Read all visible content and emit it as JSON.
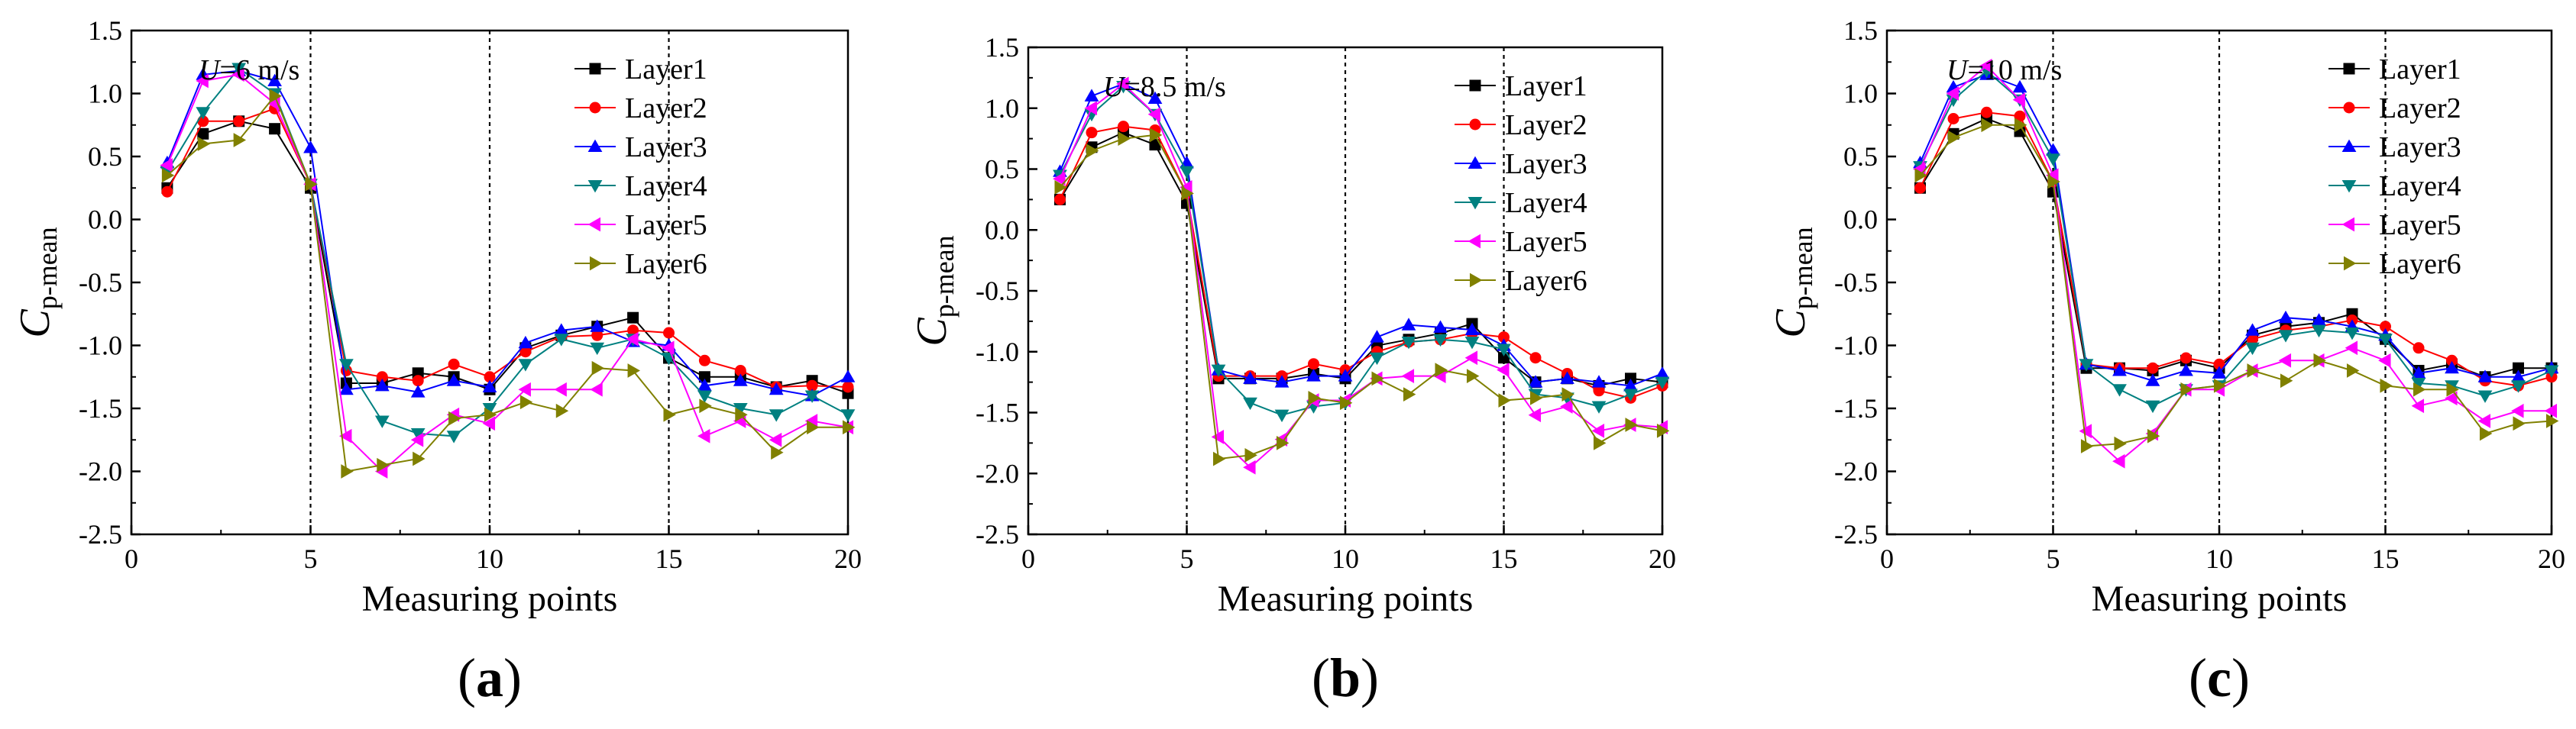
{
  "chart_data": [
    {
      "type": "line",
      "panel_label": "(a)",
      "panel_letter": "a",
      "annotation": {
        "var": "U",
        "rest": "=6 m/s"
      },
      "xlabel": "Measuring points",
      "ylabel": {
        "main": "C",
        "sub": "p-mean"
      },
      "xlim": [
        0,
        20
      ],
      "ylim": [
        -2.5,
        1.5
      ],
      "xticks": [
        "0",
        "5",
        "10",
        "15",
        "20"
      ],
      "yticks": [
        "-2.5",
        "-2.0",
        "-1.5",
        "-1.0",
        "-0.5",
        "0.0",
        "0.5",
        "1.0",
        "1.5"
      ],
      "vlines": [
        5,
        10,
        15
      ],
      "x": [
        1,
        2,
        3,
        4,
        5,
        6,
        7,
        8,
        9,
        10,
        11,
        12,
        13,
        14,
        15,
        16,
        17,
        18,
        19,
        20
      ],
      "series": [
        {
          "name": "Layer1",
          "color": "#000000",
          "marker": "square",
          "values": [
            0.25,
            0.68,
            0.78,
            0.72,
            0.25,
            -1.3,
            -1.3,
            -1.22,
            -1.25,
            -1.35,
            -1.02,
            -0.92,
            -0.85,
            -0.78,
            -1.1,
            -1.25,
            -1.25,
            -1.33,
            -1.28,
            -1.38
          ]
        },
        {
          "name": "Layer2",
          "color": "#ff0000",
          "marker": "circle",
          "values": [
            0.22,
            0.78,
            0.78,
            0.88,
            0.28,
            -1.2,
            -1.25,
            -1.28,
            -1.15,
            -1.25,
            -1.05,
            -0.93,
            -0.92,
            -0.88,
            -0.9,
            -1.12,
            -1.2,
            -1.33,
            -1.32,
            -1.33
          ]
        },
        {
          "name": "Layer3",
          "color": "#0000ff",
          "marker": "triangle-up",
          "values": [
            0.45,
            1.15,
            1.18,
            1.1,
            0.57,
            -1.35,
            -1.32,
            -1.37,
            -1.28,
            -1.33,
            -0.98,
            -0.88,
            -0.85,
            -0.97,
            -1.0,
            -1.32,
            -1.28,
            -1.35,
            -1.4,
            -1.25
          ]
        },
        {
          "name": "Layer4",
          "color": "#008080",
          "marker": "triangle-down",
          "values": [
            0.38,
            0.85,
            1.2,
            1.0,
            0.28,
            -1.15,
            -1.6,
            -1.7,
            -1.72,
            -1.5,
            -1.15,
            -0.95,
            -1.02,
            -0.95,
            -1.1,
            -1.4,
            -1.5,
            -1.55,
            -1.4,
            -1.55
          ]
        },
        {
          "name": "Layer5",
          "color": "#ff00ff",
          "marker": "triangle-left",
          "values": [
            0.43,
            1.1,
            1.15,
            0.92,
            0.28,
            -1.72,
            -2.0,
            -1.75,
            -1.55,
            -1.62,
            -1.35,
            -1.35,
            -1.35,
            -0.95,
            -1.02,
            -1.72,
            -1.6,
            -1.75,
            -1.6,
            -1.65
          ]
        },
        {
          "name": "Layer6",
          "color": "#808000",
          "marker": "triangle-right",
          "values": [
            0.35,
            0.6,
            0.63,
            0.98,
            0.28,
            -2.0,
            -1.95,
            -1.9,
            -1.58,
            -1.55,
            -1.45,
            -1.52,
            -1.18,
            -1.2,
            -1.55,
            -1.48,
            -1.55,
            -1.85,
            -1.65,
            -1.65
          ]
        }
      ]
    },
    {
      "type": "line",
      "panel_label": "(b)",
      "panel_letter": "b",
      "annotation": {
        "var": "U",
        "rest": "=8.5 m/s"
      },
      "xlabel": "Measuring points",
      "ylabel": {
        "main": "C",
        "sub": "p-mean"
      },
      "xlim": [
        0,
        20
      ],
      "ylim": [
        -2.5,
        1.5
      ],
      "xticks": [
        "0",
        "5",
        "10",
        "15",
        "20"
      ],
      "yticks": [
        "-2.5",
        "-2.0",
        "-1.5",
        "-1.0",
        "-0.5",
        "0.0",
        "0.5",
        "1.0",
        "1.5"
      ],
      "vlines": [
        5,
        10,
        15
      ],
      "x": [
        1,
        2,
        3,
        4,
        5,
        6,
        7,
        8,
        9,
        10,
        11,
        12,
        13,
        14,
        15,
        16,
        17,
        18,
        19,
        20
      ],
      "series": [
        {
          "name": "Layer1",
          "color": "#000000",
          "marker": "square",
          "values": [
            0.25,
            0.68,
            0.8,
            0.7,
            0.22,
            -1.22,
            -1.22,
            -1.22,
            -1.18,
            -1.22,
            -0.95,
            -0.9,
            -0.85,
            -0.77,
            -1.05,
            -1.25,
            -1.22,
            -1.28,
            -1.22,
            -1.25
          ]
        },
        {
          "name": "Layer2",
          "color": "#ff0000",
          "marker": "circle",
          "values": [
            0.25,
            0.8,
            0.85,
            0.82,
            0.3,
            -1.2,
            -1.2,
            -1.2,
            -1.1,
            -1.15,
            -1.0,
            -0.92,
            -0.9,
            -0.85,
            -0.88,
            -1.05,
            -1.18,
            -1.32,
            -1.38,
            -1.28
          ]
        },
        {
          "name": "Layer3",
          "color": "#0000ff",
          "marker": "triangle-up",
          "values": [
            0.48,
            1.1,
            1.2,
            1.08,
            0.55,
            -1.15,
            -1.22,
            -1.25,
            -1.2,
            -1.2,
            -0.88,
            -0.78,
            -0.8,
            -0.82,
            -0.95,
            -1.25,
            -1.22,
            -1.25,
            -1.28,
            -1.18
          ]
        },
        {
          "name": "Layer4",
          "color": "#008080",
          "marker": "triangle-down",
          "values": [
            0.45,
            0.95,
            1.18,
            0.95,
            0.48,
            -1.15,
            -1.42,
            -1.52,
            -1.45,
            -1.42,
            -1.05,
            -0.92,
            -0.9,
            -0.92,
            -0.98,
            -1.35,
            -1.38,
            -1.45,
            -1.35,
            -1.25
          ]
        },
        {
          "name": "Layer5",
          "color": "#ff00ff",
          "marker": "triangle-left",
          "values": [
            0.42,
            1.0,
            1.2,
            0.95,
            0.35,
            -1.7,
            -1.95,
            -1.72,
            -1.4,
            -1.4,
            -1.22,
            -1.2,
            -1.2,
            -1.05,
            -1.15,
            -1.52,
            -1.45,
            -1.65,
            -1.6,
            -1.62
          ]
        },
        {
          "name": "Layer6",
          "color": "#808000",
          "marker": "triangle-right",
          "values": [
            0.35,
            0.65,
            0.75,
            0.78,
            0.3,
            -1.88,
            -1.85,
            -1.75,
            -1.38,
            -1.42,
            -1.22,
            -1.35,
            -1.15,
            -1.2,
            -1.4,
            -1.38,
            -1.35,
            -1.75,
            -1.6,
            -1.65
          ]
        }
      ]
    },
    {
      "type": "line",
      "panel_label": "(c)",
      "panel_letter": "c",
      "annotation": {
        "var": "U",
        "rest": "=10 m/s"
      },
      "xlabel": "Measuring points",
      "ylabel": {
        "main": "C",
        "sub": "p-mean"
      },
      "xlim": [
        0,
        20
      ],
      "ylim": [
        -2.5,
        1.5
      ],
      "xticks": [
        "0",
        "5",
        "10",
        "15",
        "20"
      ],
      "yticks": [
        "-2.5",
        "-2.0",
        "-1.5",
        "-1.0",
        "-0.5",
        "0.0",
        "0.5",
        "1.0",
        "1.5"
      ],
      "vlines": [
        5,
        10,
        15
      ],
      "x": [
        1,
        2,
        3,
        4,
        5,
        6,
        7,
        8,
        9,
        10,
        11,
        12,
        13,
        14,
        15,
        16,
        17,
        18,
        19,
        20
      ],
      "series": [
        {
          "name": "Layer1",
          "color": "#000000",
          "marker": "square",
          "values": [
            0.25,
            0.68,
            0.8,
            0.7,
            0.22,
            -1.18,
            -1.18,
            -1.2,
            -1.12,
            -1.18,
            -0.92,
            -0.85,
            -0.82,
            -0.75,
            -0.95,
            -1.2,
            -1.15,
            -1.25,
            -1.18,
            -1.18
          ]
        },
        {
          "name": "Layer2",
          "color": "#ff0000",
          "marker": "circle",
          "values": [
            0.25,
            0.8,
            0.85,
            0.82,
            0.3,
            -1.15,
            -1.18,
            -1.18,
            -1.1,
            -1.15,
            -0.95,
            -0.88,
            -0.85,
            -0.8,
            -0.85,
            -1.02,
            -1.12,
            -1.28,
            -1.32,
            -1.25
          ]
        },
        {
          "name": "Layer3",
          "color": "#0000ff",
          "marker": "triangle-up",
          "values": [
            0.45,
            1.05,
            1.15,
            1.05,
            0.55,
            -1.15,
            -1.2,
            -1.28,
            -1.2,
            -1.22,
            -0.88,
            -0.78,
            -0.8,
            -0.85,
            -0.92,
            -1.22,
            -1.18,
            -1.25,
            -1.25,
            -1.18
          ]
        },
        {
          "name": "Layer4",
          "color": "#008080",
          "marker": "triangle-down",
          "values": [
            0.42,
            0.95,
            1.18,
            0.95,
            0.48,
            -1.15,
            -1.35,
            -1.48,
            -1.35,
            -1.32,
            -1.02,
            -0.92,
            -0.88,
            -0.9,
            -0.95,
            -1.3,
            -1.32,
            -1.4,
            -1.32,
            -1.2
          ]
        },
        {
          "name": "Layer5",
          "color": "#ff00ff",
          "marker": "triangle-left",
          "values": [
            0.4,
            1.0,
            1.22,
            0.95,
            0.35,
            -1.68,
            -1.92,
            -1.7,
            -1.35,
            -1.35,
            -1.2,
            -1.12,
            -1.12,
            -1.02,
            -1.12,
            -1.48,
            -1.42,
            -1.6,
            -1.52,
            -1.52
          ]
        },
        {
          "name": "Layer6",
          "color": "#808000",
          "marker": "triangle-right",
          "values": [
            0.35,
            0.65,
            0.75,
            0.75,
            0.3,
            -1.8,
            -1.78,
            -1.72,
            -1.35,
            -1.32,
            -1.2,
            -1.28,
            -1.12,
            -1.2,
            -1.32,
            -1.35,
            -1.35,
            -1.7,
            -1.62,
            -1.6
          ]
        }
      ]
    }
  ]
}
